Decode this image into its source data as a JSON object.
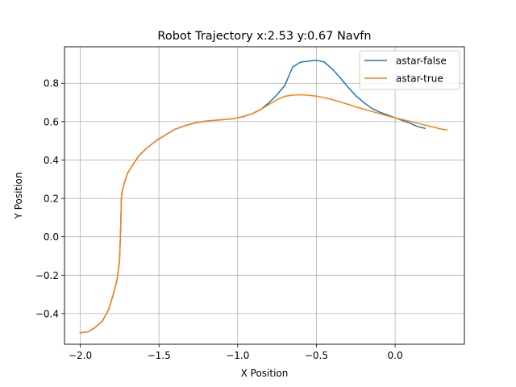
{
  "chart_data": {
    "type": "line",
    "title": "Robot Trajectory x:2.53 y:0.67 Navfn",
    "xlabel": "X Position",
    "ylabel": "Y Position",
    "xlim": [
      -2.1,
      0.44
    ],
    "ylim": [
      -0.56,
      0.99
    ],
    "xticks": [
      -2.0,
      -1.5,
      -1.0,
      -0.5,
      0.0
    ],
    "xtick_labels": [
      "−2.0",
      "−1.5",
      "−1.0",
      "−0.5",
      "0.0"
    ],
    "yticks": [
      -0.4,
      -0.2,
      0.0,
      0.2,
      0.4,
      0.6,
      0.8
    ],
    "ytick_labels": [
      "−0.4",
      "−0.2",
      "0.0",
      "0.2",
      "0.4",
      "0.6",
      "0.8"
    ],
    "grid": true,
    "legend_position": "top-right",
    "series": [
      {
        "name": "astar-false",
        "color": "#1f77b4",
        "x": [
          -2.0,
          -1.95,
          -1.91,
          -1.86,
          -1.82,
          -1.79,
          -1.765,
          -1.75,
          -1.745,
          -1.742,
          -1.741,
          -1.74,
          -1.74,
          -1.735,
          -1.72,
          -1.7,
          -1.67,
          -1.63,
          -1.58,
          -1.52,
          -1.46,
          -1.4,
          -1.33,
          -1.26,
          -1.18,
          -1.1,
          -1.03,
          -0.97,
          -0.91,
          -0.85,
          -0.8,
          -0.75,
          -0.7,
          -0.65,
          -0.6,
          -0.55,
          -0.5,
          -0.45,
          -0.4,
          -0.35,
          -0.3,
          -0.25,
          -0.2,
          -0.15,
          -0.1,
          -0.05,
          0.0,
          0.05,
          0.1,
          0.14,
          0.19
        ],
        "y": [
          -0.5,
          -0.495,
          -0.475,
          -0.44,
          -0.38,
          -0.3,
          -0.22,
          -0.12,
          0.0,
          0.08,
          0.12,
          0.15,
          0.19,
          0.23,
          0.28,
          0.33,
          0.37,
          0.42,
          0.46,
          0.5,
          0.53,
          0.56,
          0.58,
          0.595,
          0.605,
          0.61,
          0.615,
          0.625,
          0.64,
          0.665,
          0.7,
          0.74,
          0.79,
          0.885,
          0.91,
          0.915,
          0.92,
          0.91,
          0.875,
          0.83,
          0.78,
          0.735,
          0.7,
          0.67,
          0.65,
          0.635,
          0.62,
          0.605,
          0.59,
          0.575,
          0.565
        ]
      },
      {
        "name": "astar-true",
        "color": "#ff7f0e",
        "x": [
          -2.0,
          -1.95,
          -1.91,
          -1.86,
          -1.82,
          -1.79,
          -1.765,
          -1.75,
          -1.745,
          -1.742,
          -1.741,
          -1.74,
          -1.74,
          -1.735,
          -1.72,
          -1.7,
          -1.67,
          -1.63,
          -1.58,
          -1.52,
          -1.46,
          -1.4,
          -1.33,
          -1.26,
          -1.18,
          -1.1,
          -1.03,
          -0.97,
          -0.91,
          -0.85,
          -0.8,
          -0.75,
          -0.7,
          -0.65,
          -0.6,
          -0.55,
          -0.5,
          -0.45,
          -0.4,
          -0.35,
          -0.3,
          -0.25,
          -0.2,
          -0.15,
          -0.1,
          -0.05,
          0.0,
          0.05,
          0.1,
          0.15,
          0.2,
          0.25,
          0.3,
          0.33
        ],
        "y": [
          -0.5,
          -0.495,
          -0.475,
          -0.44,
          -0.38,
          -0.3,
          -0.22,
          -0.12,
          0.0,
          0.08,
          0.12,
          0.15,
          0.19,
          0.23,
          0.28,
          0.33,
          0.37,
          0.42,
          0.46,
          0.5,
          0.53,
          0.56,
          0.58,
          0.595,
          0.605,
          0.61,
          0.615,
          0.625,
          0.64,
          0.665,
          0.69,
          0.715,
          0.732,
          0.738,
          0.74,
          0.737,
          0.733,
          0.725,
          0.715,
          0.703,
          0.69,
          0.677,
          0.665,
          0.653,
          0.642,
          0.63,
          0.62,
          0.61,
          0.6,
          0.59,
          0.58,
          0.57,
          0.56,
          0.557
        ]
      }
    ]
  }
}
